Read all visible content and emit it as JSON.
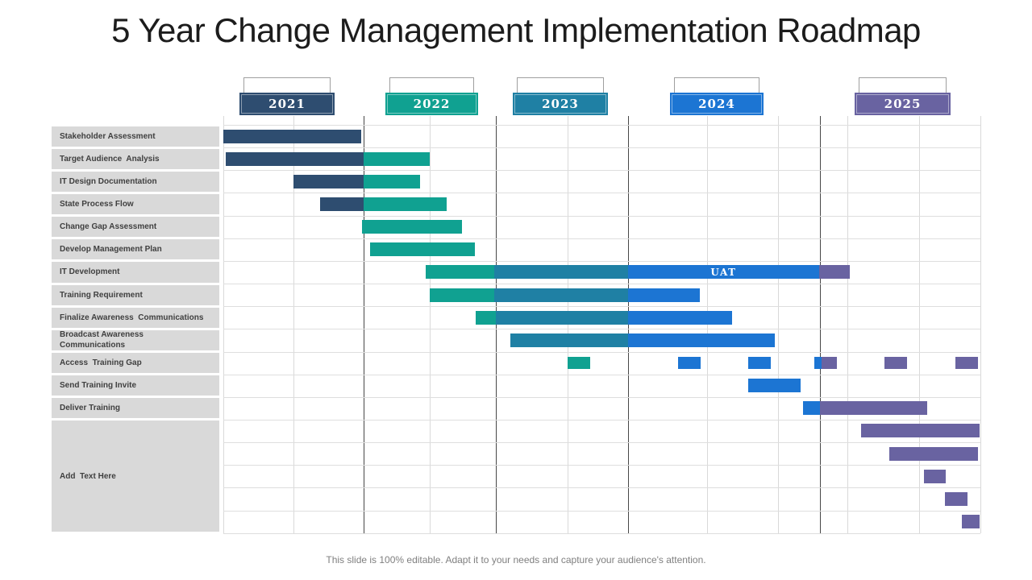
{
  "slide": {
    "title": "5 Year Change Management Implementation Roadmap",
    "footer": "This slide is 100% editable. Adapt it to your needs and capture your audience's attention."
  },
  "colors": {
    "navy": "#2e4d70",
    "teal": "#10a191",
    "midteal": "#1f80a4",
    "blue": "#1c75d3",
    "purple": "#6963a1",
    "label_bg": "#d9d9d9",
    "label_text": "#3f3f3f",
    "grid_light": "#d9d9d9",
    "grid_dark": "#474747",
    "tab_border": "#9f9f9f",
    "footer_text": "#7f7f7f",
    "title_text": "#1c1c1c"
  },
  "chart_data": {
    "type": "gantt",
    "title": "5 Year Change Management Implementation Roadmap",
    "legend_position": "top",
    "years": [
      {
        "label": "2021",
        "color": "navy",
        "left_pct": 2.13,
        "width_pct": 12.57
      },
      {
        "label": "2022",
        "color": "teal",
        "left_pct": 21.41,
        "width_pct": 12.25
      },
      {
        "label": "2023",
        "color": "midteal",
        "left_pct": 38.23,
        "width_pct": 12.57
      },
      {
        "label": "2024",
        "color": "blue",
        "left_pct": 59.0,
        "width_pct": 12.35
      },
      {
        "label": "2025",
        "color": "purple",
        "left_pct": 83.39,
        "width_pct": 12.67
      }
    ],
    "year_boundary_lines_pct": [
      18.53,
      36.0,
      53.46,
      78.81
    ],
    "minor_gridlines_pct": [
      0,
      9.27,
      27.26,
      45.47,
      63.9,
      73.27,
      82.43,
      91.91,
      100
    ],
    "tasks": [
      {
        "label": "Stakeholder Assessment",
        "span": 1
      },
      {
        "label": "Target Audience  Analysis",
        "span": 1
      },
      {
        "label": "IT Design Documentation",
        "span": 1
      },
      {
        "label": "State Process Flow",
        "span": 1
      },
      {
        "label": "Change Gap Assessment",
        "span": 1
      },
      {
        "label": "Develop Management Plan",
        "span": 1
      },
      {
        "label": "IT Development",
        "span": 1
      },
      {
        "label": "Training Requirement",
        "span": 1
      },
      {
        "label": "Finalize Awareness  Communications",
        "span": 1
      },
      {
        "label": "Broadcast Awareness\nCommunications",
        "span": 1
      },
      {
        "label": "Access  Training Gap",
        "span": 1
      },
      {
        "label": "Send Training Invite",
        "span": 1
      },
      {
        "label": "Deliver Training",
        "span": 1
      },
      {
        "label": "Add  Text Here",
        "span": 5
      }
    ],
    "bar_rows": [
      [
        {
          "color": "navy",
          "left_pct": 0,
          "width_pct": 18.21
        }
      ],
      [
        {
          "color": "navy",
          "left_pct": 0.32,
          "width_pct": 18.21
        },
        {
          "color": "teal",
          "left_pct": 18.53,
          "width_pct": 8.73
        }
      ],
      [
        {
          "color": "navy",
          "left_pct": 9.27,
          "width_pct": 9.27
        },
        {
          "color": "teal",
          "left_pct": 18.53,
          "width_pct": 7.45
        }
      ],
      [
        {
          "color": "navy",
          "left_pct": 12.78,
          "width_pct": 5.75
        },
        {
          "color": "teal",
          "left_pct": 18.53,
          "width_pct": 10.97
        }
      ],
      [
        {
          "color": "teal",
          "left_pct": 18.32,
          "width_pct": 13.21
        }
      ],
      [
        {
          "color": "teal",
          "left_pct": 19.38,
          "width_pct": 13.84
        }
      ],
      [
        {
          "color": "teal",
          "left_pct": 26.73,
          "width_pct": 9.05
        },
        {
          "color": "midteal",
          "left_pct": 35.78,
          "width_pct": 17.68
        },
        {
          "color": "blue",
          "left_pct": 53.46,
          "width_pct": 25.24,
          "label": "UAT"
        },
        {
          "color": "purple",
          "left_pct": 78.7,
          "width_pct": 4.05
        }
      ],
      [
        {
          "color": "teal",
          "left_pct": 27.26,
          "width_pct": 8.52
        },
        {
          "color": "midteal",
          "left_pct": 35.78,
          "width_pct": 17.68
        },
        {
          "color": "blue",
          "left_pct": 53.46,
          "width_pct": 9.48
        }
      ],
      [
        {
          "color": "teal",
          "left_pct": 33.33,
          "width_pct": 2.66
        },
        {
          "color": "midteal",
          "left_pct": 35.99,
          "width_pct": 17.47
        },
        {
          "color": "blue",
          "left_pct": 53.46,
          "width_pct": 13.74
        }
      ],
      [
        {
          "color": "midteal",
          "left_pct": 37.91,
          "width_pct": 15.55
        },
        {
          "color": "blue",
          "left_pct": 53.46,
          "width_pct": 19.38
        }
      ],
      [
        {
          "color": "teal",
          "left_pct": 45.47,
          "width_pct": 2.98,
          "small": true
        },
        {
          "color": "blue",
          "left_pct": 60.06,
          "width_pct": 2.98,
          "small": true
        },
        {
          "color": "blue",
          "left_pct": 69.33,
          "width_pct": 2.98,
          "small": true
        },
        {
          "color": "blue",
          "left_pct": 78.06,
          "width_pct": 0.96,
          "small": true
        },
        {
          "color": "purple",
          "left_pct": 79.02,
          "width_pct": 2.02,
          "small": true
        },
        {
          "color": "purple",
          "left_pct": 87.33,
          "width_pct": 2.98,
          "small": true
        },
        {
          "color": "purple",
          "left_pct": 96.7,
          "width_pct": 2.98,
          "small": true
        }
      ],
      [
        {
          "color": "blue",
          "left_pct": 69.33,
          "width_pct": 6.92
        }
      ],
      [
        {
          "color": "blue",
          "left_pct": 76.57,
          "width_pct": 2.24
        },
        {
          "color": "purple",
          "left_pct": 78.81,
          "width_pct": 14.16
        }
      ],
      [
        {
          "color": "purple",
          "left_pct": 84.24,
          "width_pct": 15.65
        }
      ],
      [
        {
          "color": "purple",
          "left_pct": 87.97,
          "width_pct": 11.71
        }
      ],
      [
        {
          "color": "purple",
          "left_pct": 92.55,
          "width_pct": 2.88
        }
      ],
      [
        {
          "color": "purple",
          "left_pct": 95.31,
          "width_pct": 2.98
        }
      ],
      [
        {
          "color": "purple",
          "left_pct": 97.55,
          "width_pct": 2.34
        }
      ]
    ]
  }
}
